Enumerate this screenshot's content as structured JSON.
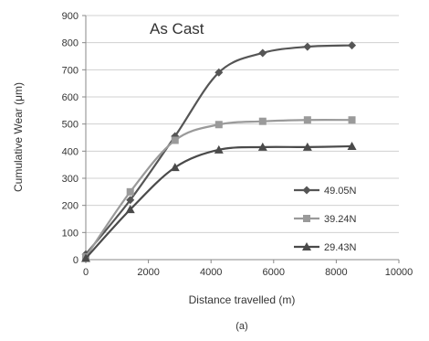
{
  "chart_data": {
    "type": "line",
    "annotation": "As Cast",
    "xlabel": "Distance travelled (m)",
    "ylabel": "Cumulative Wear (μm)",
    "caption": "(a)",
    "xlim": [
      0,
      10000
    ],
    "ylim": [
      0,
      900
    ],
    "xticks": [
      0,
      2000,
      4000,
      6000,
      8000,
      10000
    ],
    "yticks": [
      0,
      100,
      200,
      300,
      400,
      500,
      600,
      700,
      800,
      900
    ],
    "grid": "horizontal",
    "legend_position": "right",
    "series": [
      {
        "name": "49.05N",
        "marker": "diamond",
        "color": "#555555",
        "x": [
          0,
          1420,
          2850,
          4250,
          5650,
          7080,
          8500
        ],
        "y": [
          20,
          220,
          455,
          690,
          762,
          785,
          790
        ]
      },
      {
        "name": "39.24N",
        "marker": "square",
        "color": "#9a9a9a",
        "x": [
          0,
          1420,
          2850,
          4250,
          5650,
          7080,
          8500
        ],
        "y": [
          10,
          250,
          440,
          498,
          510,
          515,
          515
        ]
      },
      {
        "name": "29.43N",
        "marker": "triangle",
        "color": "#4a4a4a",
        "x": [
          0,
          1420,
          2850,
          4250,
          5650,
          7080,
          8500
        ],
        "y": [
          5,
          185,
          340,
          405,
          415,
          415,
          418
        ]
      }
    ]
  }
}
